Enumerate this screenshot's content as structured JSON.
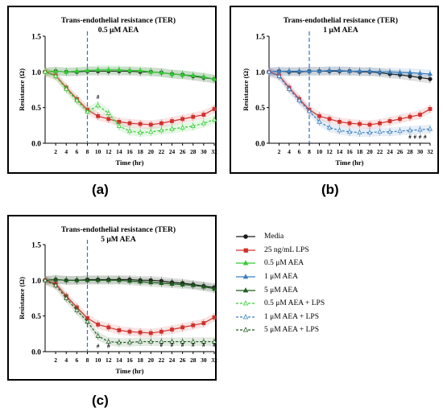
{
  "panel_labels": [
    "(a)",
    "(b)",
    "(c)"
  ],
  "legend": [
    {
      "label": "Media",
      "color": "#1a1a1a",
      "style": "solid",
      "marker": "circle"
    },
    {
      "label": "25 ng/mL LPS",
      "color": "#d0312d",
      "style": "solid",
      "marker": "square"
    },
    {
      "label": "0.5 μM AEA",
      "color": "#33cc33",
      "style": "solid",
      "marker": "triangle"
    },
    {
      "label": "1 μM AEA",
      "color": "#3a7fbf",
      "style": "solid",
      "marker": "triangle"
    },
    {
      "label": "5 μM AEA",
      "color": "#1e5c1e",
      "style": "solid",
      "marker": "triangle"
    },
    {
      "label": "0.5 μM AEA + LPS",
      "color": "#33cc33",
      "style": "dashed",
      "marker": "triangle"
    },
    {
      "label": "1 μM AEA + LPS",
      "color": "#3a7fbf",
      "style": "dashed",
      "marker": "triangle"
    },
    {
      "label": "5 μM AEA + LPS",
      "color": "#1e5c1e",
      "style": "dashed",
      "marker": "triangle"
    }
  ],
  "chart_data": [
    {
      "type": "line",
      "title": "Trans-endothelial resistance (TER)",
      "subtitle": "0.5 μM AEA",
      "xlabel": "Time (hr)",
      "ylabel": "Resistance (Ω)",
      "xlim": [
        0,
        32
      ],
      "ylim": [
        0,
        1.5
      ],
      "xticks": [
        2,
        4,
        6,
        8,
        10,
        12,
        14,
        16,
        18,
        20,
        22,
        24,
        26,
        28,
        30,
        32
      ],
      "yticks": [
        0.0,
        0.5,
        1.0,
        1.5
      ],
      "vline_x": 8,
      "series": [
        {
          "name": "Media",
          "color": "#1a1a1a",
          "dashed": false,
          "x": [
            0,
            2,
            4,
            6,
            8,
            10,
            12,
            14,
            16,
            18,
            20,
            22,
            24,
            26,
            28,
            30,
            32
          ],
          "y": [
            1.0,
            1.01,
            1.0,
            1.0,
            1.01,
            1.01,
            1.01,
            1.01,
            1.01,
            1.0,
            1.0,
            0.99,
            0.97,
            0.96,
            0.94,
            0.92,
            0.9
          ]
        },
        {
          "name": "25 ng/mL LPS",
          "color": "#d0312d",
          "dashed": false,
          "x": [
            0,
            2,
            4,
            6,
            8,
            10,
            12,
            14,
            16,
            18,
            20,
            22,
            24,
            26,
            28,
            30,
            32
          ],
          "y": [
            1.0,
            0.95,
            0.78,
            0.62,
            0.47,
            0.38,
            0.34,
            0.3,
            0.28,
            0.27,
            0.26,
            0.28,
            0.31,
            0.34,
            0.37,
            0.4,
            0.48
          ]
        },
        {
          "name": "0.5 μM AEA",
          "color": "#33cc33",
          "dashed": false,
          "x": [
            0,
            2,
            4,
            6,
            8,
            10,
            12,
            14,
            16,
            18,
            20,
            22,
            24,
            26,
            28,
            30,
            32
          ],
          "y": [
            1.0,
            1.01,
            1.0,
            1.01,
            1.02,
            1.03,
            1.03,
            1.03,
            1.02,
            1.02,
            1.0,
            0.99,
            0.97,
            0.96,
            0.95,
            0.93,
            0.9
          ]
        },
        {
          "name": "0.5 μM AEA + LPS",
          "color": "#33cc33",
          "dashed": true,
          "x": [
            0,
            2,
            4,
            6,
            8,
            10,
            12,
            14,
            16,
            18,
            20,
            22,
            24,
            26,
            28,
            30,
            32
          ],
          "y": [
            1.0,
            0.94,
            0.76,
            0.6,
            0.44,
            0.53,
            0.42,
            0.24,
            0.17,
            0.15,
            0.16,
            0.18,
            0.2,
            0.22,
            0.24,
            0.28,
            0.33
          ]
        }
      ],
      "annotations": [
        {
          "x": 10,
          "y": 0.62,
          "text": "#"
        }
      ]
    },
    {
      "type": "line",
      "title": "Trans-endothelial resistance (TER)",
      "subtitle": "1 μM AEA",
      "xlabel": "Time (hr)",
      "ylabel": "Resistance (Ω)",
      "xlim": [
        0,
        32
      ],
      "ylim": [
        0,
        1.5
      ],
      "xticks": [
        2,
        4,
        6,
        8,
        10,
        12,
        14,
        16,
        18,
        20,
        22,
        24,
        26,
        28,
        30,
        32
      ],
      "yticks": [
        0.0,
        0.5,
        1.0,
        1.5
      ],
      "vline_x": 8,
      "series": [
        {
          "name": "Media",
          "color": "#1a1a1a",
          "dashed": false,
          "x": [
            0,
            2,
            4,
            6,
            8,
            10,
            12,
            14,
            16,
            18,
            20,
            22,
            24,
            26,
            28,
            30,
            32
          ],
          "y": [
            1.0,
            1.01,
            1.0,
            1.0,
            1.01,
            1.01,
            1.01,
            1.01,
            1.01,
            1.0,
            1.0,
            0.99,
            0.97,
            0.96,
            0.94,
            0.92,
            0.9
          ]
        },
        {
          "name": "25 ng/mL LPS",
          "color": "#d0312d",
          "dashed": false,
          "x": [
            0,
            2,
            4,
            6,
            8,
            10,
            12,
            14,
            16,
            18,
            20,
            22,
            24,
            26,
            28,
            30,
            32
          ],
          "y": [
            1.0,
            0.95,
            0.78,
            0.62,
            0.47,
            0.38,
            0.34,
            0.3,
            0.28,
            0.27,
            0.26,
            0.28,
            0.31,
            0.34,
            0.37,
            0.4,
            0.48
          ]
        },
        {
          "name": "1 μM AEA",
          "color": "#3a7fbf",
          "dashed": false,
          "x": [
            0,
            2,
            4,
            6,
            8,
            10,
            12,
            14,
            16,
            18,
            20,
            22,
            24,
            26,
            28,
            30,
            32
          ],
          "y": [
            1.0,
            1.01,
            1.01,
            1.01,
            1.01,
            1.01,
            1.02,
            1.02,
            1.01,
            1.01,
            1.01,
            1.0,
            1.0,
            0.99,
            0.99,
            0.98,
            0.97
          ]
        },
        {
          "name": "1 μM AEA + LPS",
          "color": "#3a7fbf",
          "dashed": true,
          "x": [
            0,
            2,
            4,
            6,
            8,
            10,
            12,
            14,
            16,
            18,
            20,
            22,
            24,
            26,
            28,
            30,
            32
          ],
          "y": [
            1.0,
            0.94,
            0.76,
            0.6,
            0.45,
            0.3,
            0.22,
            0.18,
            0.16,
            0.15,
            0.15,
            0.16,
            0.16,
            0.17,
            0.18,
            0.19,
            0.2
          ]
        }
      ],
      "annotations": [
        {
          "x": 28,
          "y": 0.06,
          "text": "#"
        },
        {
          "x": 29,
          "y": 0.06,
          "text": "#"
        },
        {
          "x": 30,
          "y": 0.06,
          "text": "#"
        },
        {
          "x": 31,
          "y": 0.06,
          "text": "#"
        }
      ]
    },
    {
      "type": "line",
      "title": "Trans-endothelial resistance (TER)",
      "subtitle": "5 μM AEA",
      "xlabel": "Time (hr)",
      "ylabel": "Resistance (Ω)",
      "xlim": [
        0,
        32
      ],
      "ylim": [
        0,
        1.5
      ],
      "xticks": [
        2,
        4,
        6,
        8,
        10,
        12,
        14,
        16,
        18,
        20,
        22,
        24,
        26,
        28,
        30,
        32
      ],
      "yticks": [
        0.0,
        0.5,
        1.0,
        1.5
      ],
      "vline_x": 8,
      "series": [
        {
          "name": "Media",
          "color": "#1a1a1a",
          "dashed": false,
          "x": [
            0,
            2,
            4,
            6,
            8,
            10,
            12,
            14,
            16,
            18,
            20,
            22,
            24,
            26,
            28,
            30,
            32
          ],
          "y": [
            1.0,
            1.01,
            1.0,
            1.0,
            1.01,
            1.01,
            1.01,
            1.01,
            1.01,
            1.0,
            1.0,
            0.99,
            0.97,
            0.96,
            0.94,
            0.92,
            0.9
          ]
        },
        {
          "name": "25 ng/mL LPS",
          "color": "#d0312d",
          "dashed": false,
          "x": [
            0,
            2,
            4,
            6,
            8,
            10,
            12,
            14,
            16,
            18,
            20,
            22,
            24,
            26,
            28,
            30,
            32
          ],
          "y": [
            1.0,
            0.95,
            0.78,
            0.62,
            0.47,
            0.38,
            0.34,
            0.3,
            0.28,
            0.27,
            0.26,
            0.28,
            0.31,
            0.34,
            0.37,
            0.4,
            0.48
          ]
        },
        {
          "name": "5 μM AEA",
          "color": "#1e5c1e",
          "dashed": false,
          "x": [
            0,
            2,
            4,
            6,
            8,
            10,
            12,
            14,
            16,
            18,
            20,
            22,
            24,
            26,
            28,
            30,
            32
          ],
          "y": [
            1.0,
            1.01,
            1.0,
            1.0,
            1.0,
            1.0,
            1.0,
            1.0,
            0.99,
            0.98,
            0.97,
            0.96,
            0.95,
            0.94,
            0.93,
            0.91,
            0.88
          ]
        },
        {
          "name": "5 μM AEA + LPS",
          "color": "#1e5c1e",
          "dashed": true,
          "x": [
            0,
            2,
            4,
            6,
            8,
            10,
            12,
            14,
            16,
            18,
            20,
            22,
            24,
            26,
            28,
            30,
            32
          ],
          "y": [
            1.0,
            0.93,
            0.75,
            0.58,
            0.42,
            0.22,
            0.14,
            0.13,
            0.13,
            0.14,
            0.14,
            0.14,
            0.14,
            0.14,
            0.14,
            0.14,
            0.14
          ]
        }
      ],
      "annotations": [
        {
          "x": 10,
          "y": 0.05,
          "text": "#"
        },
        {
          "x": 12,
          "y": 0.05,
          "text": "#"
        },
        {
          "x": 22,
          "y": 0.07,
          "text": "#"
        },
        {
          "x": 24,
          "y": 0.07,
          "text": "#"
        },
        {
          "x": 26,
          "y": 0.07,
          "text": "#"
        },
        {
          "x": 28,
          "y": 0.07,
          "text": "#"
        },
        {
          "x": 30,
          "y": 0.07,
          "text": "#"
        },
        {
          "x": 32,
          "y": 0.07,
          "text": "#"
        }
      ]
    }
  ]
}
